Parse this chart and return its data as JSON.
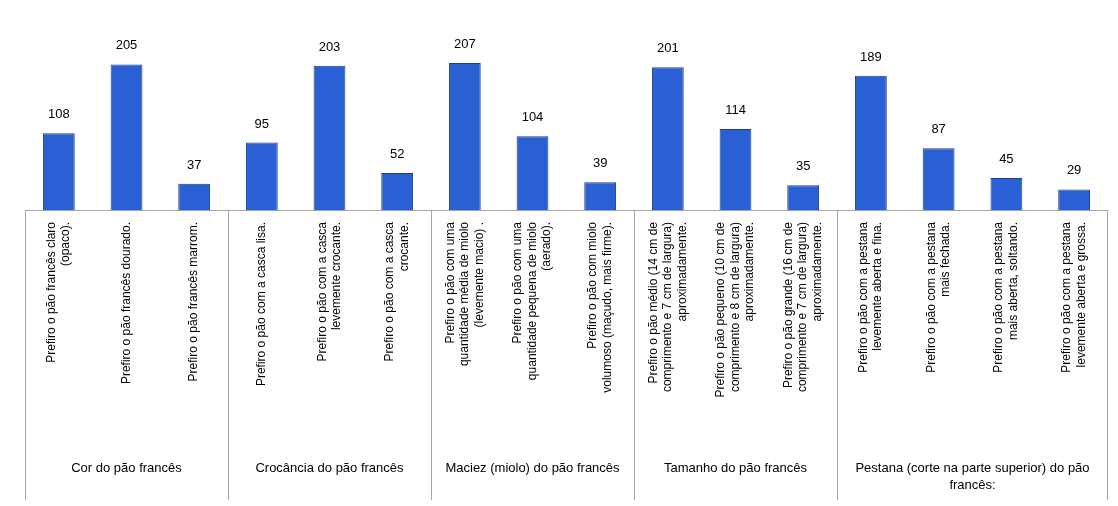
{
  "chart_data": [
    {
      "type": "bar",
      "xlabel": "Cor do pão francês",
      "categories": [
        "Prefiro o pão francês claro (opaco).",
        "Prefiro o pão francês dourado.",
        "Prefiro o pão francês marrom."
      ],
      "values": [
        108,
        205,
        37
      ],
      "color": "#2b5fd4",
      "data_labels": true
    },
    {
      "type": "bar",
      "xlabel": "Crocância do pão francês",
      "categories": [
        "Prefiro o pão com a casca lisa.",
        "Prefiro o pão com a casca levemente crocante.",
        "Prefiro o pão com a casca crocante."
      ],
      "values": [
        95,
        203,
        52
      ],
      "color": "#2b5fd4",
      "data_labels": true
    },
    {
      "type": "bar",
      "xlabel": "Maciez (miolo) do pão francês",
      "categories": [
        "Prefiro o pão com uma quantidade média de miolo (levemente macio) .",
        "Prefiro o pão com uma quantidade pequena de miolo (aerado).",
        "Prefiro o pão com miolo volumoso (maçudo, mais firme)."
      ],
      "values": [
        207,
        104,
        39
      ],
      "color": "#2b5fd4",
      "data_labels": true
    },
    {
      "type": "bar",
      "xlabel": "Tamanho do pão francês",
      "categories": [
        "Prefiro o pão médio (14 cm de comprimento e 7 cm de largura) aproximadamente.",
        "Prefiro o pão pequeno (10 cm de comprimento e 8 cm de largura) aproximadamente.",
        "Prefiro o pão grande (16 cm de comprimento e 7 cm de largura) aproximadamente."
      ],
      "values": [
        201,
        114,
        35
      ],
      "color": "#2b5fd4",
      "data_labels": true
    },
    {
      "type": "bar",
      "xlabel": "Pestana (corte na parte superior) do pão francês:",
      "categories": [
        "Prefiro o pão com a pestana levemente aberta e fina.",
        "Prefiro o pão com a pestana mais fechada.",
        "Prefiro o pão com a pestana mais aberta, soltando.",
        "Prefiro o pão com a pestana levemente aberta e grossa."
      ],
      "values": [
        189,
        87,
        45,
        29
      ],
      "color": "#2b5fd4",
      "data_labels": true
    }
  ]
}
